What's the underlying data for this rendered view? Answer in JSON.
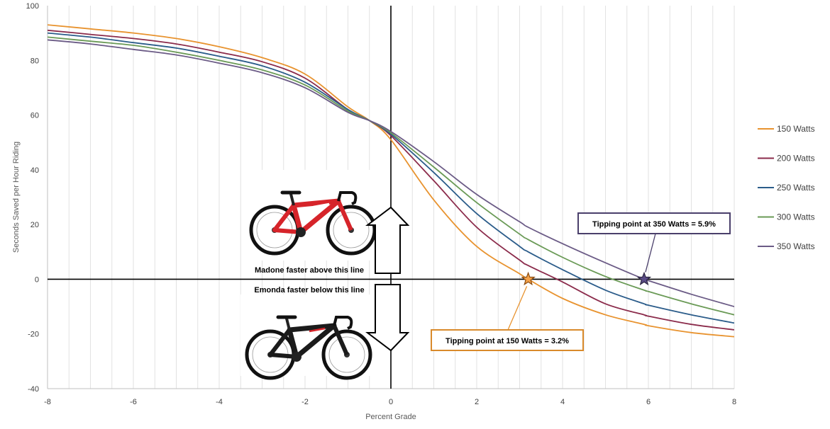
{
  "chart_data": {
    "type": "line",
    "title": "",
    "xlabel": "Percent Grade",
    "ylabel": "Seconds Saved per Hour Riding",
    "xlim": [
      -8,
      8
    ],
    "ylim": [
      -40,
      100
    ],
    "x_ticks": [
      -8,
      -6,
      -4,
      -2,
      0,
      2,
      4,
      6,
      8
    ],
    "y_ticks": [
      -40,
      -20,
      0,
      20,
      40,
      60,
      80,
      100
    ],
    "x_tick_labels": [
      "-8",
      "-6",
      "-4",
      "-2",
      "0",
      "2",
      "4",
      "6",
      "8"
    ],
    "y_tick_labels": [
      "-40",
      "-20",
      "0",
      "20",
      "40",
      "60",
      "80",
      "100"
    ],
    "grid": "vertical",
    "legend_position": "right",
    "x": [
      -8,
      -7,
      -6,
      -5,
      -4,
      -3,
      -2,
      -1,
      -0.5,
      0,
      1,
      2,
      3,
      3.2,
      4,
      5,
      5.9,
      6,
      7,
      8
    ],
    "series": [
      {
        "name": "150 Watts",
        "color": "#e8932f",
        "values": [
          93,
          91.5,
          90,
          88,
          85,
          81,
          75,
          63,
          58,
          51,
          29,
          12,
          2,
          0,
          -7,
          -13,
          -16.5,
          -17,
          -19.5,
          -21
        ]
      },
      {
        "name": "200 Watts",
        "color": "#8b2b4b",
        "values": [
          91,
          89.5,
          88,
          86,
          83,
          79.5,
          73.5,
          62,
          58,
          52.5,
          36,
          19,
          7,
          5,
          -1,
          -9,
          -13,
          -13.5,
          -16.5,
          -18.5
        ]
      },
      {
        "name": "250 Watts",
        "color": "#2b5c8a",
        "values": [
          90,
          88.5,
          86.5,
          84.5,
          81.5,
          78,
          72,
          62,
          58,
          53,
          39,
          24,
          12,
          10,
          3.5,
          -4,
          -9,
          -9.5,
          -13,
          -16
        ]
      },
      {
        "name": "300 Watts",
        "color": "#6a9a56",
        "values": [
          88.5,
          87,
          85.5,
          83,
          80,
          76.5,
          71,
          61.5,
          58,
          53.5,
          41,
          28,
          16.5,
          14.5,
          8,
          1,
          -4,
          -4.5,
          -9,
          -13
        ]
      },
      {
        "name": "350 Watts",
        "color": "#6b5b86",
        "values": [
          87.5,
          86,
          84,
          82,
          79,
          75.5,
          70,
          61,
          58,
          54,
          43,
          31,
          21,
          19,
          13,
          6,
          0,
          -0.5,
          -5.5,
          -10
        ]
      }
    ],
    "annotations": [
      {
        "text": "Tipping point at 150 Watts = 3.2%",
        "x": 3.2,
        "y": 0,
        "color": "#e8932f",
        "marker": "star"
      },
      {
        "text": "Tipping point at 350 Watts = 5.9%",
        "x": 5.9,
        "y": 0,
        "color": "#4a3f6b",
        "marker": "star"
      }
    ],
    "region_labels": {
      "above": "Madone faster above this line",
      "below": "Emonda faster below this line"
    }
  }
}
